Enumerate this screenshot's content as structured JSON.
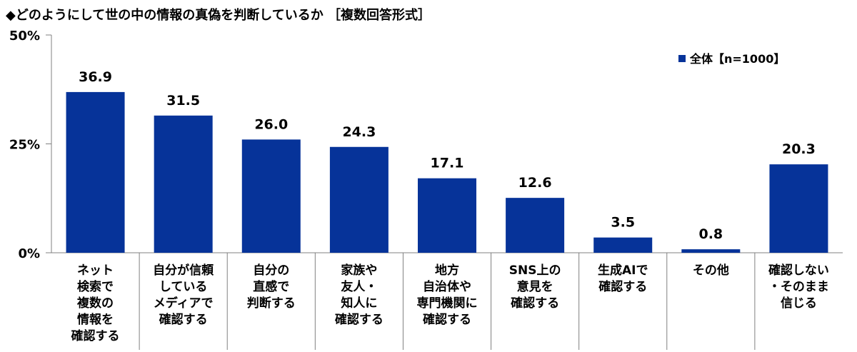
{
  "chart_data": {
    "type": "bar",
    "title": "◆どのようにして世の中の情報の真偽を判断しているか ［複数回答形式］",
    "categories": [
      [
        "ネット",
        "検索で",
        "複数の",
        "情報を",
        "確認する"
      ],
      [
        "自分が信頼",
        "している",
        "メディアで",
        "確認する"
      ],
      [
        "自分の",
        "直感で",
        "判断する"
      ],
      [
        "家族や",
        "友人・",
        "知人に",
        "確認する"
      ],
      [
        "地方",
        "自治体や",
        "専門機関に",
        "確認する"
      ],
      [
        "SNS上の",
        "意見を",
        "確認する"
      ],
      [
        "生成AIで",
        "確認する"
      ],
      [
        "その他"
      ],
      [
        "確認しない",
        "・そのまま",
        "信じる"
      ]
    ],
    "series": [
      {
        "name": "全体【n=1000】",
        "values": [
          36.9,
          31.5,
          26.0,
          24.3,
          17.1,
          12.6,
          3.5,
          0.8,
          20.3
        ]
      }
    ],
    "value_labels": [
      "36.9",
      "31.5",
      "26.0",
      "24.3",
      "17.1",
      "12.6",
      "3.5",
      "0.8",
      "20.3"
    ],
    "ylim": [
      0,
      50
    ],
    "yticks": [
      {
        "value": 0,
        "label": "0%"
      },
      {
        "value": 25,
        "label": "25%"
      },
      {
        "value": 50,
        "label": "50%"
      }
    ],
    "bar_color": "#063399",
    "grid": false,
    "legend_position": "top-right"
  }
}
